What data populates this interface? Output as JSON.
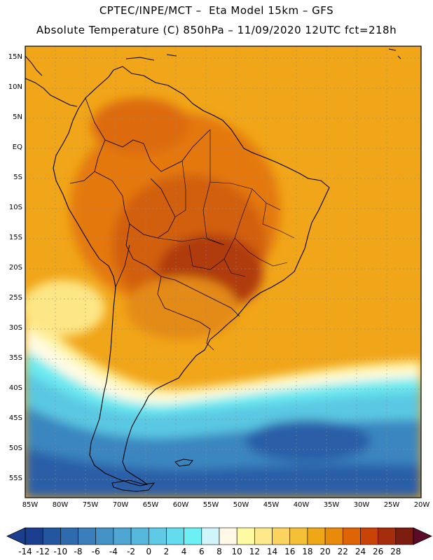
{
  "header": {
    "line1": "CPTEC/INPE/MCT –  Eta Model 15km – GFS",
    "line2": "Absolute Temperature (C) 850hPa – 11/09/2020 12UTC fct=218h"
  },
  "map": {
    "lat_labels": [
      "15N",
      "10N",
      "5N",
      "EQ",
      "5S",
      "10S",
      "15S",
      "20S",
      "25S",
      "30S",
      "35S",
      "40S",
      "45S",
      "50S",
      "55S"
    ],
    "lon_labels": [
      "85W",
      "80W",
      "75W",
      "70W",
      "65W",
      "60W",
      "55W",
      "50W",
      "45W",
      "40W",
      "35W",
      "30W",
      "25W",
      "20W"
    ],
    "lat_range": [
      15,
      -57
    ],
    "lon_range": [
      -87,
      -20
    ],
    "grid": "dotted"
  },
  "colorbar": {
    "labels": [
      "-14",
      "-12",
      "-10",
      "-8",
      "-6",
      "-4",
      "-2",
      "0",
      "2",
      "4",
      "6",
      "8",
      "10",
      "12",
      "14",
      "16",
      "18",
      "20",
      "22",
      "24",
      "26",
      "28"
    ],
    "colors": [
      "#1b3f8e",
      "#24559f",
      "#2e6aae",
      "#3a7fbb",
      "#4592c7",
      "#50a6d2",
      "#57b8dd",
      "#5ecae6",
      "#63dced",
      "#6cf0f4",
      "#cff5fa",
      "#fff8e6",
      "#fdfaa2",
      "#fde98a",
      "#fad45f",
      "#f5bf36",
      "#f0a716",
      "#e88a0a",
      "#de6406",
      "#c94306",
      "#a52d0c",
      "#7b1e0f"
    ]
  }
}
